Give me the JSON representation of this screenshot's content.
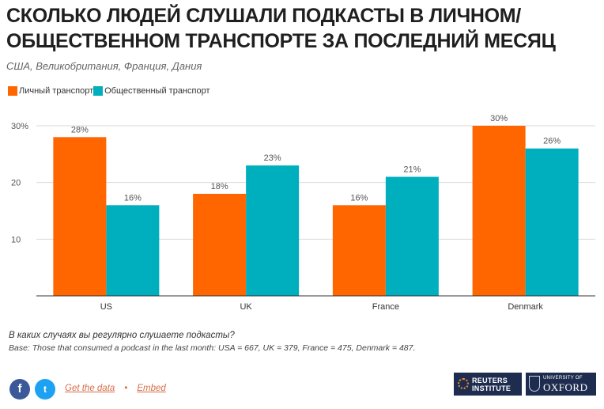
{
  "header": {
    "title": "СКОЛЬКО ЛЮДЕЙ СЛУШАЛИ ПОДКАСТЫ В ЛИЧНОМ/ ОБЩЕСТВЕННОМ ТРАНСПОРТЕ ЗА ПОСЛЕДНИЙ МЕСЯЦ",
    "subtitle": "США, Великобритания, Франция, Дания"
  },
  "legend": {
    "items": [
      {
        "label": "Личный транспорт",
        "color": "#ff6600"
      },
      {
        "label": "Общественный транспорт",
        "color": "#00afbe"
      }
    ]
  },
  "chart_data": {
    "type": "bar",
    "categories": [
      "US",
      "UK",
      "France",
      "Denmark"
    ],
    "series": [
      {
        "name": "Личный транспорт",
        "values": [
          28,
          18,
          16,
          30
        ],
        "labels": [
          "28%",
          "18%",
          "16%",
          "30%"
        ],
        "color": "#ff6600"
      },
      {
        "name": "Общественный транспорт",
        "values": [
          16,
          23,
          21,
          26
        ],
        "labels": [
          "16%",
          "23%",
          "21%",
          "26%"
        ],
        "color": "#00afbe"
      }
    ],
    "yticks": [
      {
        "value": 30,
        "label": "30%"
      },
      {
        "value": 20,
        "label": "20"
      },
      {
        "value": 10,
        "label": "10"
      }
    ],
    "ylim": [
      0,
      30
    ],
    "grid": true
  },
  "footer": {
    "question": "В каких случаях вы регулярно слушаете подкасты?",
    "base": "Base: Those that consumed a podcast in the last month: USA = 667, UK = 379, France = 475, Denmark = 487.",
    "links": {
      "get_data": "Get the data",
      "separator": "•",
      "embed": "Embed"
    },
    "social": {
      "facebook_icon": "f",
      "twitter_icon": "t"
    },
    "logos": {
      "reuters": {
        "line1": "REUTERS",
        "line2": "INSTITUTE"
      },
      "oxford": {
        "small": "UNIVERSITY OF",
        "big": "OXFORD"
      }
    }
  }
}
